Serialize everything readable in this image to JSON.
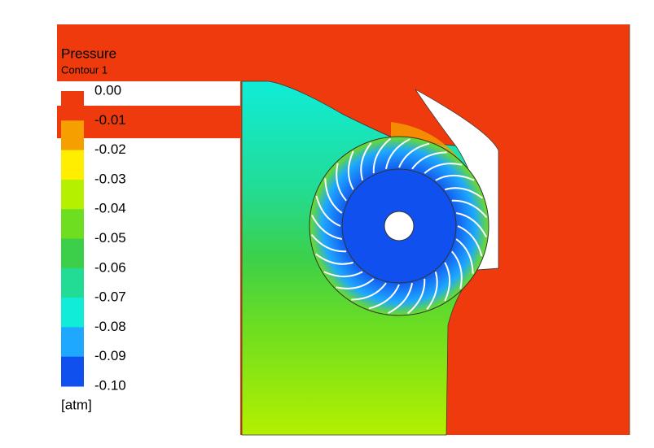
{
  "legend": {
    "title": "Pressure",
    "subtitle": "Contour 1",
    "labels": [
      "0.00",
      "-0.01",
      "-0.02",
      "-0.03",
      "-0.04",
      "-0.05",
      "-0.06",
      "-0.07",
      "-0.08",
      "-0.09",
      "-0.10"
    ],
    "colors": [
      "#ee3a0c",
      "#f5a000",
      "#ffee00",
      "#b4f000",
      "#6ede20",
      "#3cd04a",
      "#22dc96",
      "#10ecd8",
      "#1ea8ff",
      "#1050ee"
    ],
    "unit": "[atm]"
  }
}
